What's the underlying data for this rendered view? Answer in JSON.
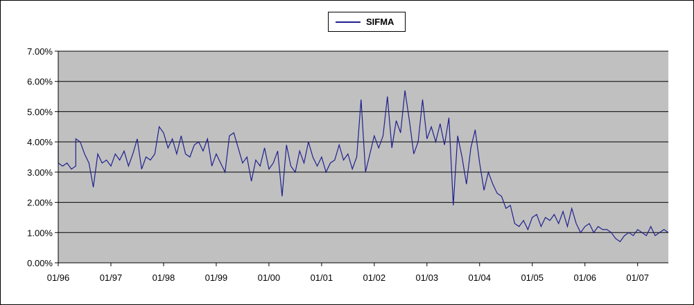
{
  "chart_data": {
    "type": "line",
    "title": "",
    "xlabel": "",
    "ylabel": "",
    "grid": true,
    "legend_position": "top-center",
    "plot_background": "#c0c0c0",
    "series_color": "#1f1f8f",
    "y_ticks": [
      "0.00%",
      "1.00%",
      "2.00%",
      "3.00%",
      "4.00%",
      "5.00%",
      "6.00%",
      "7.00%"
    ],
    "ylim": [
      0,
      7
    ],
    "x_ticks": [
      "01/96",
      "01/97",
      "01/98",
      "01/99",
      "01/00",
      "01/01",
      "01/02",
      "01/03",
      "01/04",
      "01/05",
      "01/06",
      "01/07"
    ],
    "xlim": [
      "1996-01",
      "2007-08"
    ],
    "series": [
      {
        "name": "SIFMA",
        "points": [
          [
            "1996-01",
            3.9
          ],
          [
            "1996-01",
            3.3
          ],
          [
            "1996-02",
            3.2
          ],
          [
            "1996-03",
            3.3
          ],
          [
            "1996-04",
            3.1
          ],
          [
            "1996-05",
            3.2
          ],
          [
            "1996-05",
            4.1
          ],
          [
            "1996-06",
            4.0
          ],
          [
            "1996-07",
            3.6
          ],
          [
            "1996-08",
            3.3
          ],
          [
            "1996-09",
            2.5
          ],
          [
            "1996-10",
            3.6
          ],
          [
            "1996-11",
            3.3
          ],
          [
            "1996-12",
            3.4
          ],
          [
            "1997-01",
            3.2
          ],
          [
            "1997-02",
            3.6
          ],
          [
            "1997-03",
            3.4
          ],
          [
            "1997-04",
            3.7
          ],
          [
            "1997-05",
            3.2
          ],
          [
            "1997-06",
            3.6
          ],
          [
            "1997-07",
            4.1
          ],
          [
            "1997-08",
            3.1
          ],
          [
            "1997-09",
            3.5
          ],
          [
            "1997-10",
            3.4
          ],
          [
            "1997-11",
            3.6
          ],
          [
            "1997-12",
            4.5
          ],
          [
            "1998-01",
            4.3
          ],
          [
            "1998-02",
            3.8
          ],
          [
            "1998-03",
            4.1
          ],
          [
            "1998-04",
            3.6
          ],
          [
            "1998-05",
            4.2
          ],
          [
            "1998-06",
            3.6
          ],
          [
            "1998-07",
            3.5
          ],
          [
            "1998-08",
            3.9
          ],
          [
            "1998-09",
            4.0
          ],
          [
            "1998-10",
            3.7
          ],
          [
            "1998-11",
            4.1
          ],
          [
            "1998-12",
            3.2
          ],
          [
            "1999-01",
            3.6
          ],
          [
            "1999-02",
            3.3
          ],
          [
            "1999-03",
            3.0
          ],
          [
            "1999-04",
            4.2
          ],
          [
            "1999-05",
            4.3
          ],
          [
            "1999-06",
            3.8
          ],
          [
            "1999-07",
            3.3
          ],
          [
            "1999-08",
            3.5
          ],
          [
            "1999-09",
            2.7
          ],
          [
            "1999-10",
            3.4
          ],
          [
            "1999-11",
            3.2
          ],
          [
            "1999-12",
            3.8
          ],
          [
            "2000-01",
            3.1
          ],
          [
            "2000-02",
            3.3
          ],
          [
            "2000-03",
            3.7
          ],
          [
            "2000-04",
            2.2
          ],
          [
            "2000-05",
            3.9
          ],
          [
            "2000-06",
            3.2
          ],
          [
            "2000-07",
            3.0
          ],
          [
            "2000-08",
            3.7
          ],
          [
            "2000-09",
            3.3
          ],
          [
            "2000-10",
            4.0
          ],
          [
            "2000-11",
            3.5
          ],
          [
            "2000-12",
            3.2
          ],
          [
            "2001-01",
            3.5
          ],
          [
            "2001-02",
            3.0
          ],
          [
            "2001-03",
            3.3
          ],
          [
            "2001-04",
            3.4
          ],
          [
            "2001-05",
            3.9
          ],
          [
            "2001-06",
            3.4
          ],
          [
            "2001-07",
            3.6
          ],
          [
            "2001-08",
            3.1
          ],
          [
            "2001-09",
            3.5
          ],
          [
            "2001-10",
            5.4
          ],
          [
            "2001-11",
            3.0
          ],
          [
            "2001-12",
            3.6
          ],
          [
            "2002-01",
            4.2
          ],
          [
            "2002-02",
            3.8
          ],
          [
            "2002-03",
            4.2
          ],
          [
            "2002-04",
            5.5
          ],
          [
            "2002-05",
            3.8
          ],
          [
            "2002-06",
            4.7
          ],
          [
            "2002-07",
            4.3
          ],
          [
            "2002-08",
            5.7
          ],
          [
            "2002-09",
            4.7
          ],
          [
            "2002-10",
            3.6
          ],
          [
            "2002-11",
            4.0
          ],
          [
            "2002-12",
            5.4
          ],
          [
            "2003-01",
            4.1
          ],
          [
            "2003-02",
            4.5
          ],
          [
            "2003-03",
            4.0
          ],
          [
            "2003-04",
            4.6
          ],
          [
            "2003-05",
            3.9
          ],
          [
            "2003-06",
            4.8
          ],
          [
            "2003-07",
            1.9
          ],
          [
            "2003-08",
            4.2
          ],
          [
            "2003-09",
            3.5
          ],
          [
            "2003-10",
            2.6
          ],
          [
            "2003-11",
            3.8
          ],
          [
            "2003-12",
            4.4
          ],
          [
            "2004-01",
            3.3
          ],
          [
            "2004-02",
            2.4
          ],
          [
            "2004-03",
            3.0
          ],
          [
            "2004-04",
            2.6
          ],
          [
            "2004-05",
            2.3
          ],
          [
            "2004-06",
            2.2
          ],
          [
            "2004-07",
            1.8
          ],
          [
            "2004-08",
            1.9
          ],
          [
            "2004-09",
            1.3
          ],
          [
            "2004-10",
            1.2
          ],
          [
            "2004-11",
            1.4
          ],
          [
            "2004-12",
            1.1
          ],
          [
            "2005-01",
            1.5
          ],
          [
            "2005-02",
            1.6
          ],
          [
            "2005-03",
            1.2
          ],
          [
            "2005-04",
            1.5
          ],
          [
            "2005-05",
            1.4
          ],
          [
            "2005-06",
            1.6
          ],
          [
            "2005-07",
            1.3
          ],
          [
            "2005-08",
            1.7
          ],
          [
            "2005-09",
            1.2
          ],
          [
            "2005-10",
            1.8
          ],
          [
            "2005-11",
            1.3
          ],
          [
            "2005-12",
            1.0
          ],
          [
            "2006-01",
            1.2
          ],
          [
            "2006-02",
            1.3
          ],
          [
            "2006-03",
            1.0
          ],
          [
            "2006-04",
            1.2
          ],
          [
            "2006-05",
            1.1
          ],
          [
            "2006-06",
            1.1
          ],
          [
            "2006-07",
            1.0
          ],
          [
            "2006-08",
            0.8
          ],
          [
            "2006-09",
            0.7
          ],
          [
            "2006-10",
            0.9
          ],
          [
            "2006-11",
            1.0
          ],
          [
            "2006-12",
            0.9
          ],
          [
            "2007-01",
            1.1
          ],
          [
            "2007-02",
            1.0
          ],
          [
            "2007-03",
            0.9
          ],
          [
            "2007-04",
            1.2
          ],
          [
            "2007-05",
            0.9
          ],
          [
            "2007-06",
            1.0
          ],
          [
            "2007-07",
            1.1
          ],
          [
            "2007-08",
            1.0
          ]
        ]
      }
    ]
  }
}
